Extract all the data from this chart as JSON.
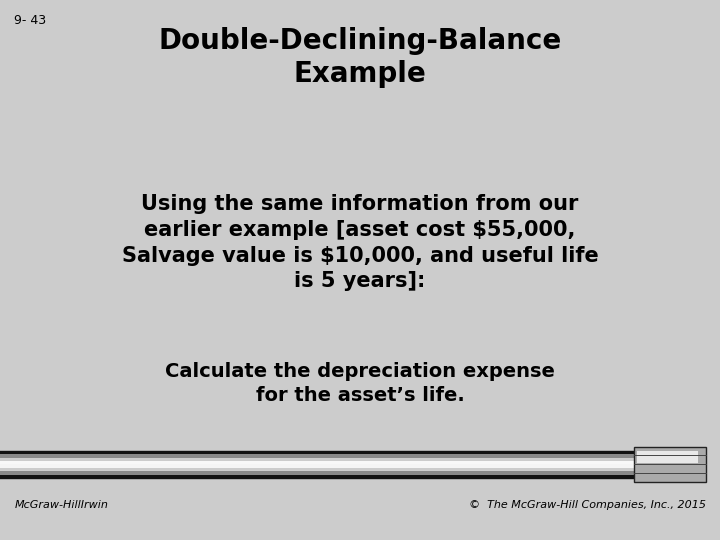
{
  "slide_number": "9- 43",
  "title_line1": "Double-Declining-Balance",
  "title_line2": "Example",
  "body_text": "Using the same information from our\nearlier example [asset cost $55,000,\nSalvage value is $10,000, and useful life\nis 5 years]:",
  "sub_text": "Calculate the depreciation expense\nfor the asset’s life.",
  "footer_left": "McGraw-HillIrwin",
  "footer_right": "©  The McGraw-Hill Companies, Inc., 2015",
  "bg_color": "#cccccc",
  "title_color": "#000000",
  "body_color": "#000000",
  "footer_color": "#000000",
  "slide_num_color": "#000000",
  "title_fontsize": 20,
  "body_fontsize": 15,
  "sub_fontsize": 14,
  "footer_fontsize": 8,
  "slide_num_fontsize": 9
}
